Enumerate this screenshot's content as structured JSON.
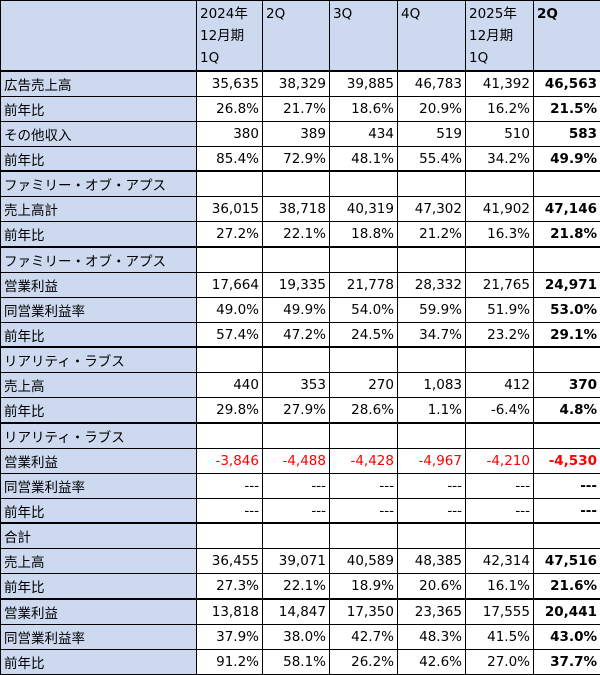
{
  "header": {
    "columns": [
      [
        "",
        "",
        ""
      ],
      [
        "2024年",
        "12月期",
        "1Q"
      ],
      [
        "2Q",
        "",
        ""
      ],
      [
        "3Q",
        "",
        ""
      ],
      [
        "4Q",
        "",
        ""
      ],
      [
        "2025年",
        "12月期",
        "1Q"
      ],
      [
        "2Q",
        "",
        ""
      ]
    ]
  },
  "colors": {
    "label_bg": "#ccd9ef",
    "negative": "#ff0000",
    "border": "#000000"
  },
  "rows": [
    {
      "label": "広告売上高",
      "values": [
        "35,635",
        "38,329",
        "39,885",
        "46,783",
        "41,392",
        "46,563"
      ],
      "group_start": true
    },
    {
      "label": "前年比",
      "values": [
        "26.8%",
        "21.7%",
        "18.6%",
        "20.9%",
        "16.2%",
        "21.5%"
      ]
    },
    {
      "label": "その他収入",
      "values": [
        "380",
        "389",
        "434",
        "519",
        "510",
        "583"
      ]
    },
    {
      "label": "前年比",
      "values": [
        "85.4%",
        "72.9%",
        "48.1%",
        "55.4%",
        "34.2%",
        "49.9%"
      ]
    },
    {
      "label": "ファミリー・オブ・アプス",
      "values": [
        "",
        "",
        "",
        "",
        "",
        ""
      ],
      "group_start": true
    },
    {
      "label": "売上高計",
      "values": [
        "36,015",
        "38,718",
        "40,319",
        "47,302",
        "41,902",
        "47,146"
      ]
    },
    {
      "label": "前年比",
      "values": [
        "27.2%",
        "22.1%",
        "18.8%",
        "21.2%",
        "16.3%",
        "21.8%"
      ]
    },
    {
      "label": "ファミリー・オブ・アプス",
      "values": [
        "",
        "",
        "",
        "",
        "",
        ""
      ],
      "group_start": true
    },
    {
      "label": "営業利益",
      "values": [
        "17,664",
        "19,335",
        "21,778",
        "28,332",
        "21,765",
        "24,971"
      ]
    },
    {
      "label": "同営業利益率",
      "values": [
        "49.0%",
        "49.9%",
        "54.0%",
        "59.9%",
        "51.9%",
        "53.0%"
      ]
    },
    {
      "label": "前年比",
      "values": [
        "57.4%",
        "47.2%",
        "24.5%",
        "34.7%",
        "23.2%",
        "29.1%"
      ]
    },
    {
      "label": "リアリティ・ラブス",
      "values": [
        "",
        "",
        "",
        "",
        "",
        ""
      ],
      "group_start": true
    },
    {
      "label": "売上高",
      "values": [
        "440",
        "353",
        "270",
        "1,083",
        "412",
        "370"
      ]
    },
    {
      "label": "前年比",
      "values": [
        "29.8%",
        "27.9%",
        "28.6%",
        "1.1%",
        "-6.4%",
        "4.8%"
      ]
    },
    {
      "label": "リアリティ・ラブス",
      "values": [
        "",
        "",
        "",
        "",
        "",
        ""
      ],
      "group_start": true
    },
    {
      "label": "営業利益",
      "values": [
        "-3,846",
        "-4,488",
        "-4,428",
        "-4,967",
        "-4,210",
        "-4,530"
      ],
      "negative": true
    },
    {
      "label": "同営業利益率",
      "values": [
        "---",
        "---",
        "---",
        "---",
        "---",
        "---"
      ]
    },
    {
      "label": "前年比",
      "values": [
        "---",
        "---",
        "---",
        "---",
        "---",
        "---"
      ]
    },
    {
      "label": "合計",
      "values": [
        "",
        "",
        "",
        "",
        "",
        ""
      ],
      "group_start": true
    },
    {
      "label": "売上高",
      "values": [
        "36,455",
        "39,071",
        "40,589",
        "48,385",
        "42,314",
        "47,516"
      ]
    },
    {
      "label": "前年比",
      "values": [
        "27.3%",
        "22.1%",
        "18.9%",
        "20.6%",
        "16.1%",
        "21.6%"
      ]
    },
    {
      "label": "営業利益",
      "values": [
        "13,818",
        "14,847",
        "17,350",
        "23,365",
        "17,555",
        "20,441"
      ],
      "group_start": true
    },
    {
      "label": "同営業利益率",
      "values": [
        "37.9%",
        "38.0%",
        "42.7%",
        "48.3%",
        "41.5%",
        "43.0%"
      ]
    },
    {
      "label": "前年比",
      "values": [
        "91.2%",
        "58.1%",
        "26.2%",
        "42.6%",
        "27.0%",
        "37.7%"
      ]
    }
  ]
}
